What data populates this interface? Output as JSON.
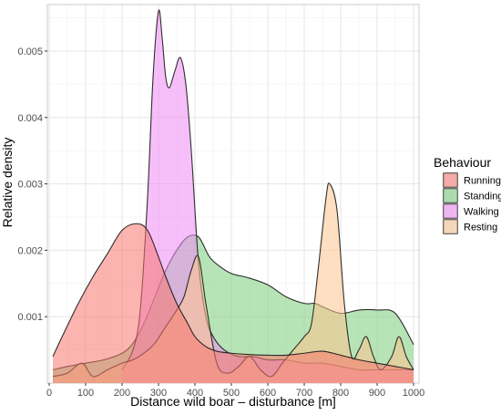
{
  "chart_data": {
    "type": "area",
    "title": "",
    "xlabel": "Distance wild boar – disturbance [m]",
    "ylabel": "Relative density",
    "xlim": [
      -5,
      1015
    ],
    "ylim": [
      0,
      0.0057
    ],
    "x_ticks": [
      0,
      100,
      200,
      300,
      400,
      500,
      600,
      700,
      800,
      900,
      1000
    ],
    "y_ticks": [
      0.001,
      0.002,
      0.003,
      0.004,
      0.005
    ],
    "y_tick_labels": [
      "0.001",
      "0.002",
      "0.003",
      "0.004",
      "0.005"
    ],
    "grid": true,
    "legend": {
      "title": "Behaviour",
      "placement": "right"
    },
    "series": [
      {
        "name": "Running",
        "color": "#F8766D",
        "x": [
          10,
          40,
          80,
          120,
          160,
          200,
          240,
          270,
          300,
          320,
          350,
          380,
          400,
          430,
          460,
          500,
          550,
          600,
          650,
          700,
          750,
          800,
          850,
          900,
          950,
          1000
        ],
        "y": [
          0.0004,
          0.00075,
          0.0012,
          0.0016,
          0.00195,
          0.0023,
          0.0024,
          0.0023,
          0.0019,
          0.0016,
          0.0012,
          0.0009,
          0.0007,
          0.00055,
          0.00048,
          0.00045,
          0.00043,
          0.00042,
          0.00042,
          0.00045,
          0.00048,
          0.00042,
          0.00035,
          0.0003,
          0.00025,
          0.0002
        ]
      },
      {
        "name": "Standing",
        "color": "#7CCE7C",
        "x": [
          10,
          50,
          100,
          150,
          200,
          230,
          260,
          290,
          320,
          350,
          380,
          410,
          440,
          470,
          500,
          550,
          600,
          650,
          700,
          730,
          750,
          800,
          850,
          900,
          950,
          1000
        ],
        "y": [
          0.0002,
          0.00025,
          0.0003,
          0.00035,
          0.00045,
          0.0006,
          0.0009,
          0.0013,
          0.0017,
          0.002,
          0.0022,
          0.0022,
          0.0019,
          0.00175,
          0.00165,
          0.00158,
          0.00148,
          0.0013,
          0.0012,
          0.0012,
          0.00115,
          0.00105,
          0.0011,
          0.0011,
          0.00105,
          0.00058
        ]
      },
      {
        "name": "Walking",
        "color": "#F08AF5",
        "x": [
          200,
          230,
          250,
          270,
          285,
          300,
          310,
          320,
          330,
          345,
          360,
          375,
          390,
          410,
          430,
          450,
          480,
          520,
          560,
          600,
          650,
          700,
          750,
          800,
          850,
          900,
          950,
          1000
        ],
        "y": [
          0.0002,
          0.0005,
          0.0011,
          0.0028,
          0.0046,
          0.0056,
          0.0052,
          0.0046,
          0.00445,
          0.0047,
          0.0049,
          0.0045,
          0.0035,
          0.0018,
          0.001,
          0.0007,
          0.0005,
          0.0004,
          0.0004,
          0.00035,
          0.00035,
          0.0003,
          0.0003,
          0.00025,
          0.0002,
          0.0002,
          0.0002,
          0.0002
        ]
      },
      {
        "name": "Resting",
        "color": "#FFC48E",
        "x": [
          10,
          50,
          90,
          120,
          160,
          200,
          230,
          260,
          290,
          320,
          350,
          370,
          390,
          410,
          430,
          460,
          490,
          520,
          550,
          580,
          610,
          640,
          670,
          700,
          720,
          740,
          760,
          770,
          790,
          810,
          830,
          850,
          870,
          890,
          910,
          940,
          960,
          980,
          1000
        ],
        "y": [
          0.0001,
          0.00015,
          0.0003,
          0.0001,
          0.0002,
          0.0003,
          0.00035,
          0.00045,
          0.0006,
          0.00085,
          0.0011,
          0.0013,
          0.0017,
          0.0019,
          0.0012,
          0.0003,
          0.00015,
          0.00025,
          0.0004,
          0.0002,
          0.0001,
          0.0003,
          0.0005,
          0.0007,
          0.0009,
          0.0018,
          0.0028,
          0.003,
          0.0026,
          0.0012,
          0.0004,
          0.0005,
          0.0007,
          0.0004,
          0.0002,
          0.0004,
          0.0007,
          0.0004,
          0.0002
        ]
      }
    ]
  }
}
